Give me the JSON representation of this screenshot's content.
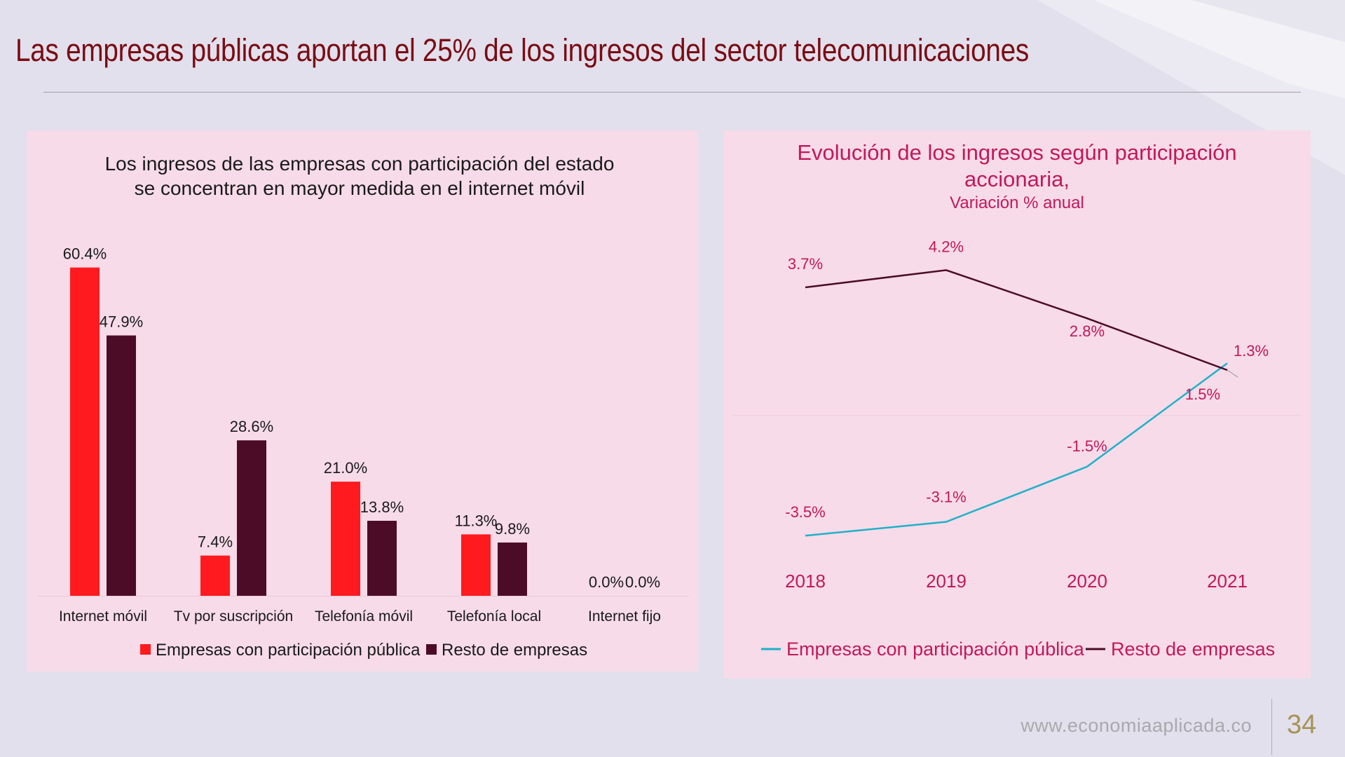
{
  "slide": {
    "title": "Las empresas públicas aportan el 25% de los ingresos del sector telecomunicaciones",
    "footer_url": "www.economiaaplicada.co",
    "page_number": "34"
  },
  "colors": {
    "background": "#e1e0ec",
    "title": "#7a0c14",
    "panel": "#f7dbe8",
    "public_bar": "#ff1a1f",
    "rest_bar": "#4c0c28",
    "public_line": "#1eb1c8",
    "rest_line": "#4c0c28",
    "accent_text": "#c2185b"
  },
  "chart_data": [
    {
      "type": "bar",
      "title_lines": [
        "Los ingresos de las empresas con participación del estado",
        "se concentran en mayor medida en el internet móvil"
      ],
      "categories": [
        "Internet móvil",
        "Tv por suscripción",
        "Telefonía móvil",
        "Telefonía local",
        "Internet fijo"
      ],
      "series": [
        {
          "name": "Empresas con participación pública",
          "values": [
            60.4,
            7.4,
            21.0,
            11.3,
            0.0
          ],
          "labels": [
            "60.4%",
            "7.4%",
            "21.0%",
            "11.3%",
            "0.0%"
          ]
        },
        {
          "name": "Resto de empresas",
          "values": [
            47.9,
            28.6,
            13.8,
            9.8,
            0.0
          ],
          "labels": [
            "47.9%",
            "28.6%",
            "13.8%",
            "9.8%",
            "0.0%"
          ]
        }
      ],
      "ylim": [
        0,
        65
      ],
      "grid": false,
      "legend_position": "bottom"
    },
    {
      "type": "line",
      "title_lines": [
        "Evolución de los ingresos según participación",
        "accionaria,"
      ],
      "subtitle": "Variación % anual",
      "x": [
        "2018",
        "2019",
        "2020",
        "2021"
      ],
      "series": [
        {
          "name": "Empresas con participación pública",
          "values": [
            -3.5,
            -3.1,
            -1.5,
            1.5
          ],
          "labels": [
            "-3.5%",
            "-3.1%",
            "-1.5%",
            "1.5%"
          ]
        },
        {
          "name": "Resto de empresas",
          "values": [
            3.7,
            4.2,
            2.8,
            1.3
          ],
          "labels": [
            "3.7%",
            "4.2%",
            "2.8%",
            "1.3%"
          ]
        }
      ],
      "ylim": [
        -4.5,
        5
      ],
      "grid": false,
      "legend_position": "bottom"
    }
  ]
}
